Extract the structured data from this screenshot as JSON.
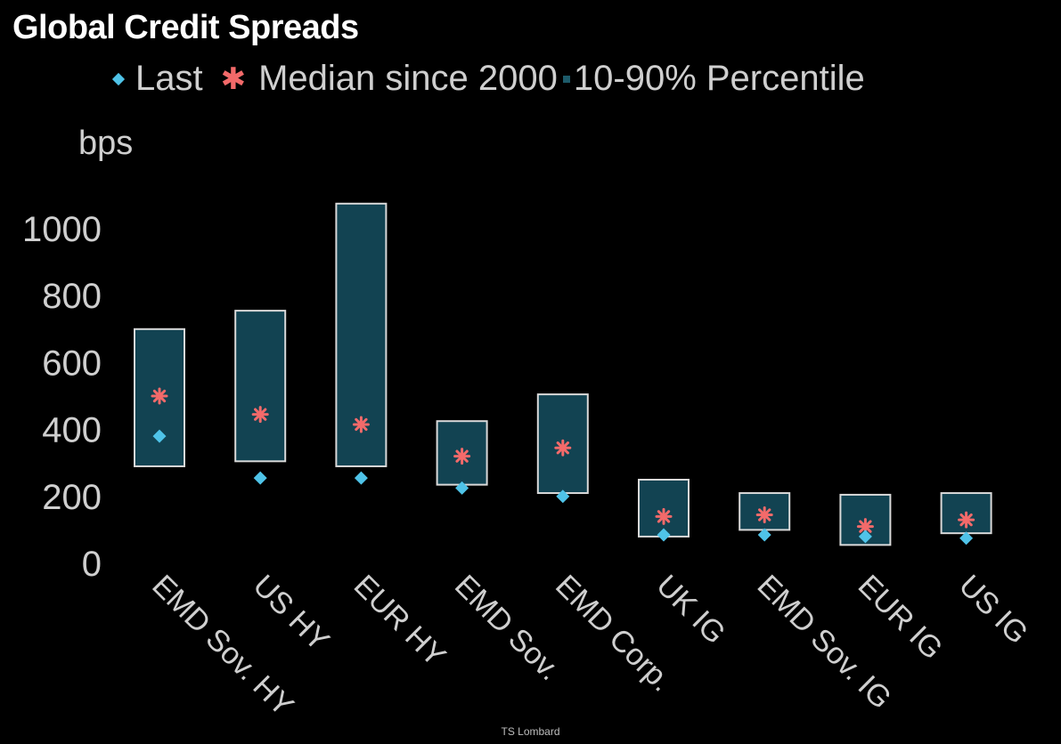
{
  "chart_data": {
    "type": "range-bar",
    "title": "Global Credit Spreads",
    "ylabel": "bps",
    "ylim": [
      0,
      1100
    ],
    "yticks": [
      0,
      200,
      400,
      600,
      800,
      1000
    ],
    "categories": [
      "EMD Sov. HY",
      "US HY",
      "EUR HY",
      "EMD Sov.",
      "EMD Corp.",
      "UK IG",
      "EMD Sov. IG",
      "EUR IG",
      "US IG"
    ],
    "series": [
      {
        "name": "Last",
        "values": [
          380,
          255,
          255,
          225,
          200,
          85,
          85,
          80,
          75
        ]
      },
      {
        "name": "Median since 2000",
        "values": [
          500,
          445,
          415,
          320,
          345,
          140,
          145,
          110,
          130
        ]
      },
      {
        "name": "10-90% Percentile",
        "low": [
          290,
          305,
          290,
          235,
          210,
          80,
          100,
          55,
          90
        ],
        "high": [
          700,
          755,
          1075,
          425,
          505,
          250,
          210,
          205,
          210
        ]
      }
    ],
    "legend": "top",
    "grid": false,
    "colors": {
      "last": "#4fc3e8",
      "median": "#f36a6a",
      "range_fill": "#124352",
      "range_edge": "#d9d9d9"
    }
  },
  "footer": "TS Lombard"
}
